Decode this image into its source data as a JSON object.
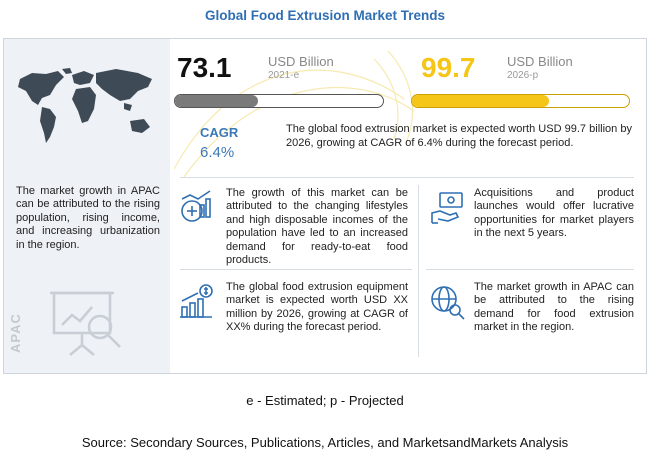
{
  "title": "Global Food Extrusion Market Trends",
  "left_panel": {
    "insight": "The market growth in APAC can be attributed to the rising population, rising income, and increasing urbanization in  the region.",
    "region_label": "APAC"
  },
  "metrics": {
    "value_2021": "73.1",
    "unit_2021": "USD Billion",
    "year_2021": "2021-e",
    "value_2026": "99.7",
    "unit_2026": "USD Billion",
    "year_2026": "2026-p",
    "bar_2021_fill": 0.4,
    "bar_2026_fill": 0.63,
    "colors": {
      "bar_2021": "#7a7a7a",
      "bar_2026": "#f5c518",
      "accent": "#3a78b8"
    }
  },
  "cagr": {
    "label": "CAGR",
    "value": "6.4%",
    "description": "The global food extrusion market is expected worth USD 99.7 billion by 2026, growing at CAGR of 6.4% during the forecast period."
  },
  "insights": [
    {
      "icon": "trend-chart-icon",
      "text": "The growth of this market can be attributed to the changing lifestyles and high disposable incomes of the population have led to an increased demand for ready-to-eat food products."
    },
    {
      "icon": "handshake-money-icon",
      "text": "Acquisitions and product launches would offer lucrative opportunities for market players in the next 5 years."
    },
    {
      "icon": "dollar-growth-icon",
      "text": "The global food extrusion equipment market is expected worth USD XX million by 2026, growing at CAGR of XX% during the forecast period."
    },
    {
      "icon": "globe-search-icon",
      "text": "The market growth in APAC can be attributed to the rising demand for food extrusion market in the region."
    }
  ],
  "footnote": "e - Estimated; p - Projected",
  "source": "Source: Secondary Sources, Publications, Articles, and MarketsandMarkets Analysis"
}
